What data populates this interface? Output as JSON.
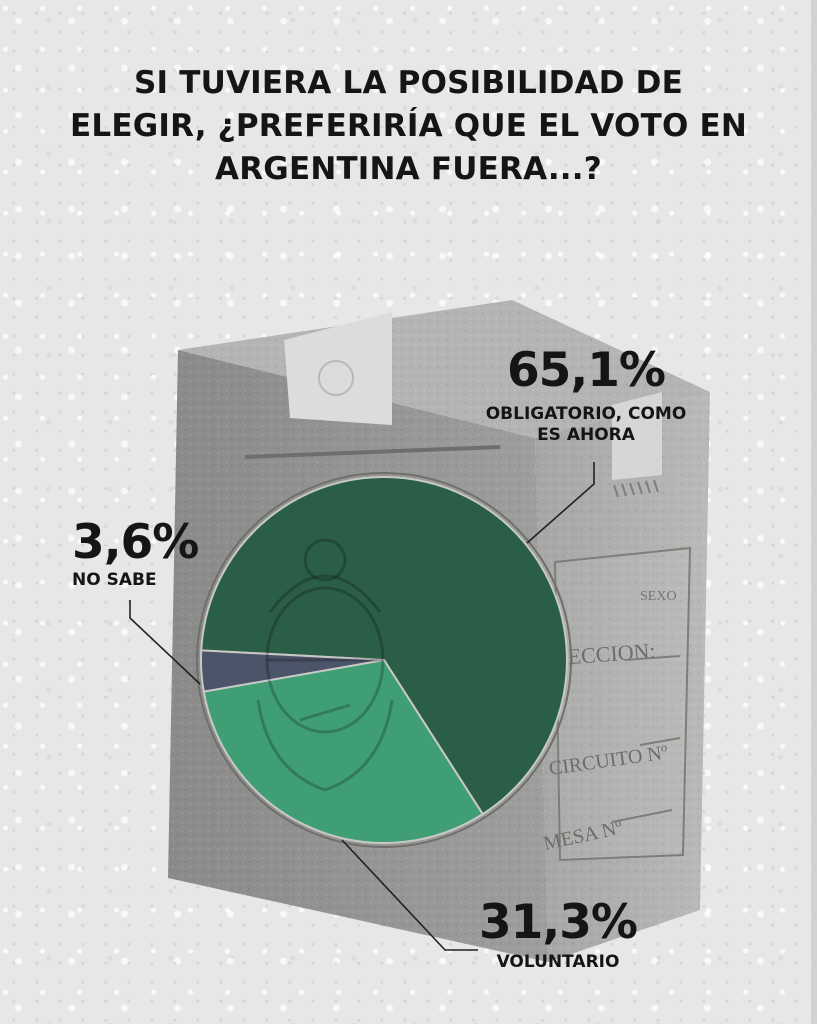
{
  "title": {
    "lines": [
      "SI TUVIERA LA POSIBILIDAD DE",
      "ELEGIR, ¿PREFERIRÍA QUE EL VOTO EN",
      "ARGENTINA FUERA...?"
    ]
  },
  "chart_data": {
    "type": "pie",
    "title": "SI TUVIERA LA POSIBILIDAD DE ELEGIR, ¿PREFERIRÍA QUE EL VOTO EN ARGENTINA FUERA...?",
    "slices": [
      {
        "label": "OBLIGATORIO, COMO ES AHORA",
        "value": 65.1,
        "value_label": "65,1%",
        "color": "#2b5e46"
      },
      {
        "label": "VOLUNTARIO",
        "value": 31.3,
        "value_label": "31,3%",
        "color": "#3f9e74"
      },
      {
        "label": "NO SABE",
        "value": 3.6,
        "value_label": "3,6%",
        "color": "#4b5468"
      }
    ],
    "labels": {
      "oblig": {
        "value_label": "65,1%",
        "line1": "OBLIGATORIO, COMO",
        "line2": "ES AHORA"
      },
      "volun": {
        "value_label": "31,3%",
        "line1": "VOLUNTARIO"
      },
      "nosabe": {
        "value_label": "3,6%",
        "line1": "NO SABE"
      }
    }
  },
  "ballot_box": {
    "field_sexo": "SEXO",
    "field_seccion": "SECCION:",
    "field_circuito": "CIRCUITO Nº",
    "field_mesa": "MESA Nº"
  }
}
